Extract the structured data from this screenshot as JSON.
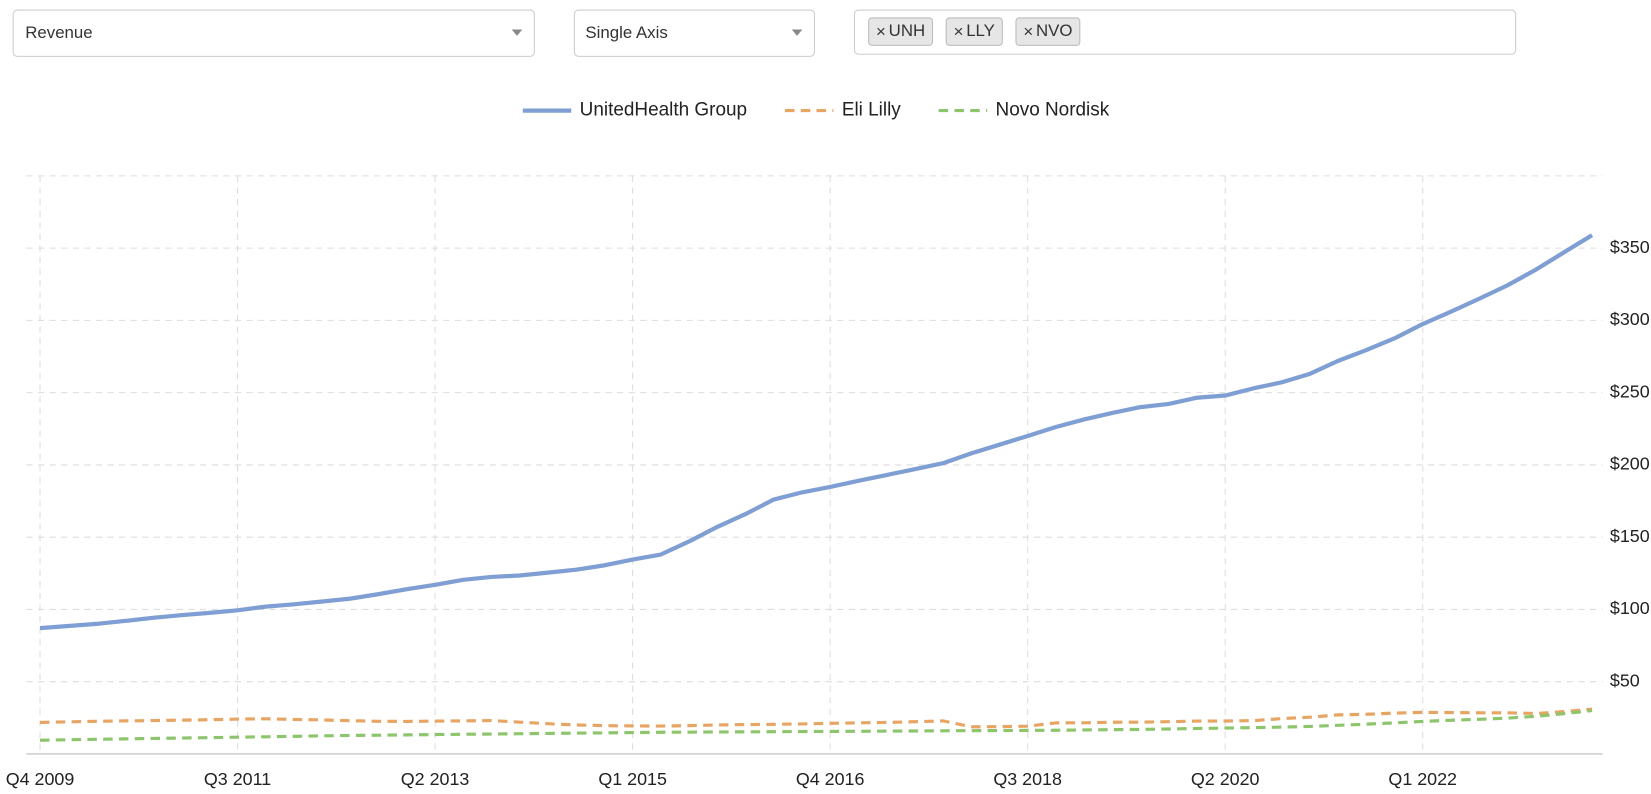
{
  "controls": {
    "metric": "Revenue",
    "axis_mode": "Single Axis",
    "tickers": [
      "UNH",
      "LLY",
      "NVO"
    ]
  },
  "chart_data": {
    "type": "line",
    "categories": [
      "Q4 2009",
      null,
      null,
      null,
      null,
      null,
      null,
      "Q3 2011",
      null,
      null,
      null,
      null,
      null,
      null,
      "Q2 2013",
      null,
      null,
      null,
      null,
      null,
      null,
      "Q1 2015",
      null,
      null,
      null,
      null,
      null,
      null,
      "Q4 2016",
      null,
      null,
      null,
      null,
      null,
      null,
      "Q3 2018",
      null,
      null,
      null,
      null,
      null,
      null,
      "Q2 2020",
      null,
      null,
      null,
      null,
      null,
      null,
      "Q1 2022",
      null,
      null,
      null,
      null,
      null,
      null
    ],
    "series": [
      {
        "name": "UnitedHealth Group",
        "color": "#7f9fd4",
        "dash": "solid",
        "values": [
          87.1,
          88.5,
          90,
          92,
          94.2,
          96,
          97.6,
          99.4,
          101.9,
          103.5,
          105.5,
          107.5,
          110.6,
          114,
          117,
          120.5,
          122.5,
          123.5,
          125.5,
          127.5,
          130.5,
          134.5,
          138,
          147,
          157.1,
          166,
          176,
          181,
          184.8,
          189,
          193,
          197,
          201.2,
          208,
          214,
          220,
          226.2,
          231.5,
          236,
          240,
          242.2,
          246.5,
          248,
          253,
          257.1,
          263,
          272,
          279.5,
          287.6,
          297.5,
          306,
          315,
          324.2,
          335,
          347,
          359
        ]
      },
      {
        "name": "Eli Lilly",
        "color": "#e8a463",
        "dash": "dashed",
        "values": [
          21.8,
          22.2,
          22.6,
          22.9,
          23.1,
          23.4,
          23.7,
          24.1,
          24.3,
          23.9,
          23.5,
          23.0,
          22.6,
          22.5,
          22.7,
          22.9,
          23.1,
          22.0,
          20.9,
          20.0,
          19.6,
          19.4,
          19.3,
          19.6,
          20.0,
          20.3,
          20.5,
          20.8,
          21.2,
          21.5,
          21.8,
          22.3,
          22.9,
          18.8,
          18.9,
          19.2,
          21.5,
          21.6,
          21.9,
          22.0,
          22.3,
          22.7,
          22.8,
          23.0,
          24.5,
          25.4,
          27.0,
          27.5,
          28.3,
          28.8,
          28.6,
          28.5,
          28.5,
          28.0,
          29.3,
          31.0
        ]
      },
      {
        "name": "Novo Nordisk",
        "color": "#8cc56b",
        "dash": "dashed",
        "values": [
          9.5,
          9.8,
          10.1,
          10.4,
          10.7,
          11.0,
          11.3,
          11.6,
          11.9,
          12.2,
          12.5,
          12.8,
          13.0,
          13.2,
          13.4,
          13.6,
          13.8,
          14.0,
          14.2,
          14.4,
          14.6,
          14.8,
          15.0,
          15.1,
          15.2,
          15.3,
          15.4,
          15.5,
          15.6,
          15.7,
          15.8,
          15.9,
          16.0,
          16.1,
          16.2,
          16.3,
          16.4,
          16.6,
          16.8,
          17.0,
          17.3,
          17.6,
          17.9,
          18.2,
          18.6,
          19.0,
          19.8,
          20.6,
          21.5,
          22.5,
          23.3,
          24.0,
          24.8,
          26.0,
          27.8,
          30.0
        ]
      }
    ],
    "ylim": [
      0,
      400
    ],
    "yticks": [
      {
        "value": 50,
        "label": "$50"
      },
      {
        "value": 100,
        "label": "$100"
      },
      {
        "value": 150,
        "label": "$150"
      },
      {
        "value": 200,
        "label": "$200"
      },
      {
        "value": 250,
        "label": "$250"
      },
      {
        "value": 300,
        "label": "$300"
      },
      {
        "value": 350,
        "label": "$350"
      }
    ],
    "grid": true,
    "legend": "top"
  }
}
